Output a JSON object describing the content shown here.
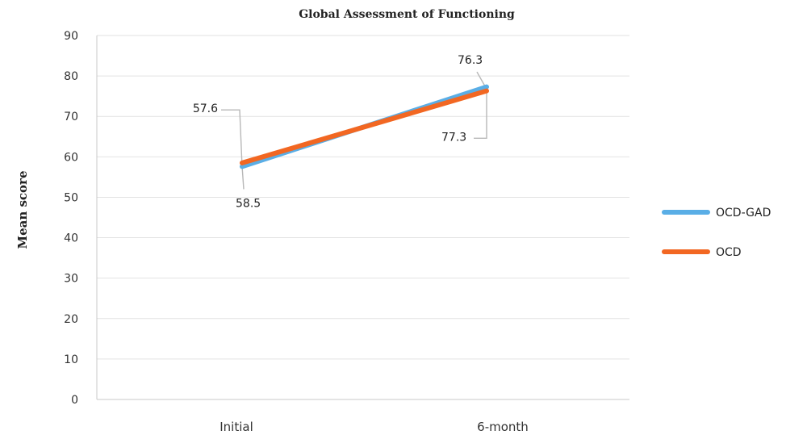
{
  "chart_data": {
    "type": "line",
    "title": "Global Assessment of Functioning",
    "xlabel": "",
    "ylabel": "Mean score",
    "categories": [
      "Initial",
      "6-month"
    ],
    "ylim": [
      0,
      90
    ],
    "yticks": [
      0,
      10,
      20,
      30,
      40,
      50,
      60,
      70,
      80,
      90
    ],
    "grid": true,
    "legend": "right",
    "series": [
      {
        "name": "OCD-GAD",
        "color": "#5aaee6",
        "values": [
          57.6,
          77.3
        ]
      },
      {
        "name": "OCD",
        "color": "#f26722",
        "values": [
          58.5,
          76.3
        ]
      }
    ]
  }
}
